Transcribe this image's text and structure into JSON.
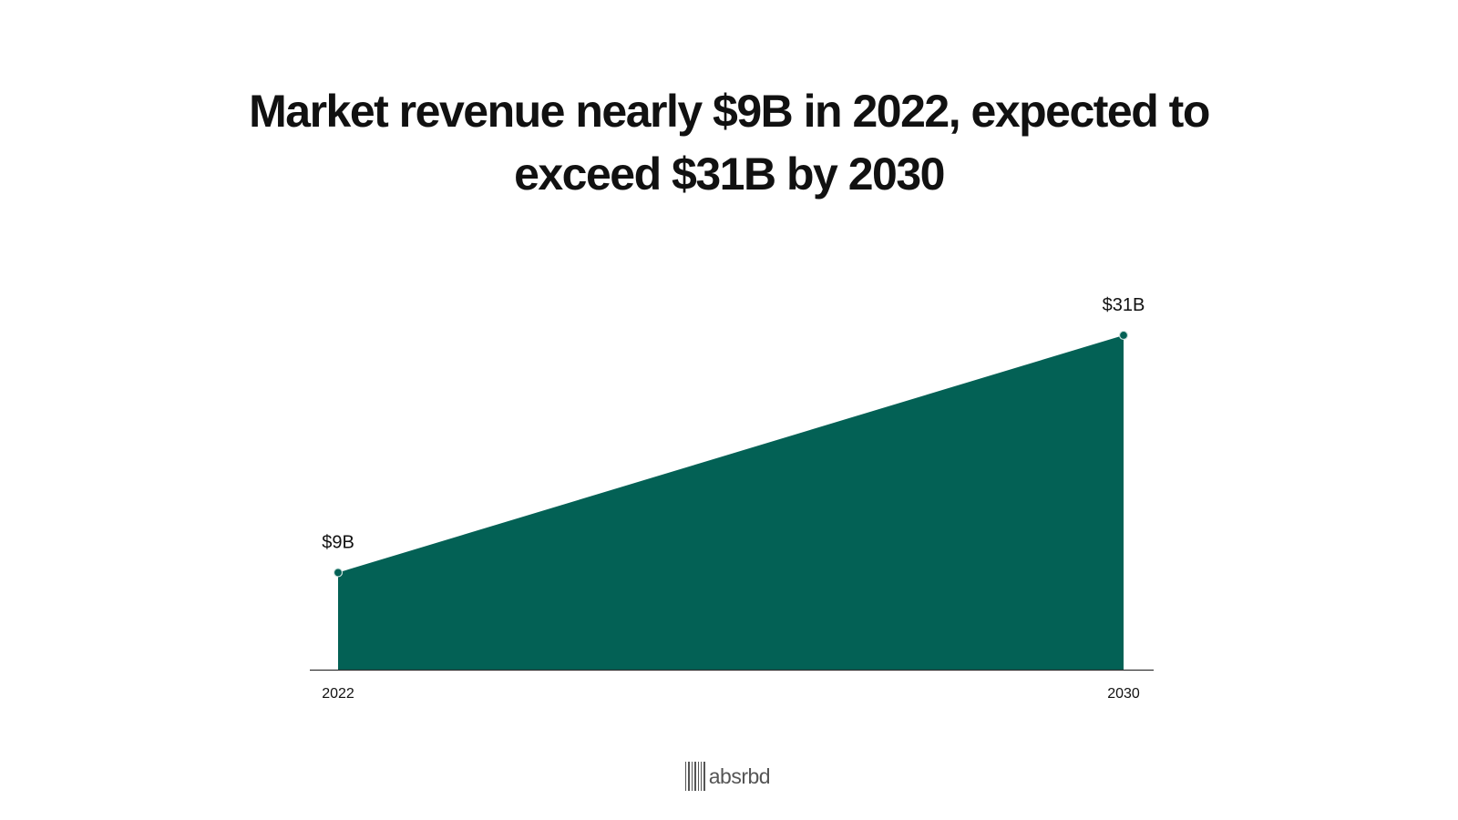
{
  "title": "Market revenue nearly $9B in 2022, expected to exceed $31B by 2030",
  "brand": {
    "name": "absrbd"
  },
  "colors": {
    "area": "#036155",
    "axis": "#333333",
    "text": "#111111",
    "brand": "#555555"
  },
  "chart_data": {
    "type": "area",
    "title": "Market revenue nearly $9B in 2022, expected to exceed $31B by 2030",
    "xlabel": "",
    "ylabel": "",
    "x": [
      "2022",
      "2030"
    ],
    "series": [
      {
        "name": "Market revenue",
        "values": [
          9,
          31
        ],
        "labels": [
          "$9B",
          "$31B"
        ]
      }
    ],
    "ylim": [
      0,
      35
    ],
    "grid": false,
    "legend": "none"
  }
}
